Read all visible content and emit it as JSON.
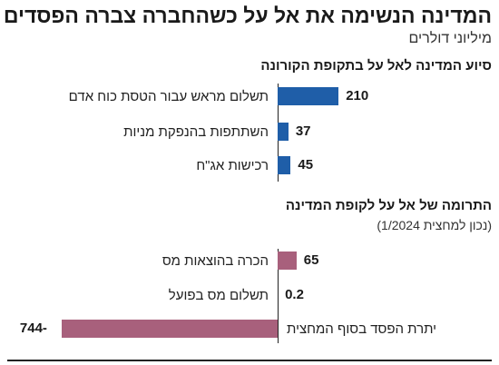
{
  "header": {
    "title": "המדינה הנשימה את אל על כשהחברה צברה הפסדים",
    "subtitle": "מיליוני דולרים"
  },
  "chart_data": [
    {
      "type": "bar",
      "orientation": "horizontal",
      "title": "סיוע המדינה לאל על בתקופת הקורונה",
      "categories": [
        "תשלום מראש עבור הטסת כוח אדם",
        "השתתפות בהנפקת מניות",
        "רכישות אג\"ח"
      ],
      "values": [
        210,
        37,
        45
      ],
      "value_labels": [
        "210",
        "37",
        "45"
      ],
      "color": "#1f5ea8"
    },
    {
      "type": "bar",
      "orientation": "horizontal",
      "title": "התרומה של אל על לקופת המדינה",
      "note": "(נכון למחצית 1/2024)",
      "categories": [
        "הכרה בהוצאות מס",
        "תשלום מס בפועל",
        "יתרת הפסד בסוף המחצית"
      ],
      "values": [
        65,
        0.2,
        -744
      ],
      "value_labels": [
        "65",
        "0.2",
        "744-"
      ],
      "color": "#a8607c"
    }
  ]
}
